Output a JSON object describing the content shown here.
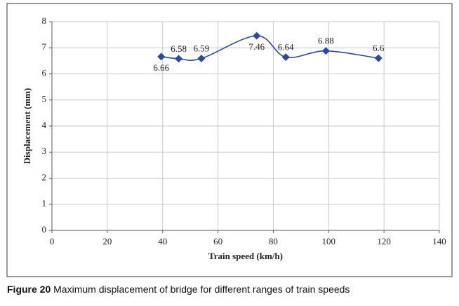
{
  "chart_data": {
    "type": "line",
    "x_label": "Train speed (km/h)",
    "y_label": "Displacement (mm)",
    "x": [
      39.5,
      45.8,
      54,
      74,
      84.5,
      99,
      118
    ],
    "series": [
      {
        "name": "Maximum displacement",
        "color": "#2a4a9c",
        "values": [
          6.66,
          6.58,
          6.59,
          7.46,
          6.64,
          6.88,
          6.6
        ]
      }
    ],
    "xlim": [
      0,
      140
    ],
    "xticks": [
      0,
      20,
      40,
      60,
      80,
      100,
      120,
      140
    ],
    "ylim": [
      0,
      8
    ],
    "yticks": [
      0,
      1,
      2,
      3,
      4,
      5,
      6,
      7,
      8
    ],
    "grid": true,
    "smooth": true
  },
  "caption": {
    "label": "Figure 20",
    "text": "Maximum displacement of bridge for different ranges of train speeds"
  }
}
